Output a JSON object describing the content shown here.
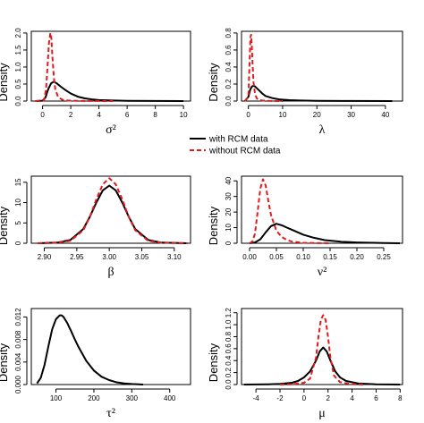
{
  "legend": {
    "with_label": "with RCM data",
    "without_label": "without RCM data"
  },
  "colors": {
    "with": "#000000",
    "without": "#e31a1c"
  },
  "chart_data": [
    {
      "type": "line",
      "ylabel": "Density",
      "xlabel": "σ²",
      "xlim": [
        -0.8,
        10.5
      ],
      "ylim": [
        0,
        2.05
      ],
      "xticks": [
        "0",
        "2",
        "4",
        "6",
        "8",
        "10"
      ],
      "xtick_values": [
        0,
        2,
        4,
        6,
        8,
        10
      ],
      "yticks": [
        "0.0",
        "0.5",
        "1.0",
        "1.5",
        "2.0"
      ],
      "ytick_values": [
        0,
        0.5,
        1.0,
        1.5,
        2.0
      ],
      "series": [
        {
          "name": "with RCM data",
          "style": "solid",
          "x": [
            -0.5,
            0.0,
            0.2,
            0.4,
            0.6,
            0.8,
            1.0,
            1.3,
            1.6,
            2.0,
            2.5,
            3.0,
            3.5,
            4.0,
            5.0,
            6.0,
            8.0,
            10.0
          ],
          "y": [
            0,
            0.01,
            0.1,
            0.35,
            0.52,
            0.57,
            0.52,
            0.42,
            0.33,
            0.22,
            0.13,
            0.08,
            0.05,
            0.03,
            0.015,
            0.008,
            0.003,
            0
          ]
        },
        {
          "name": "without RCM data",
          "style": "dashed",
          "x": [
            -0.5,
            0.1,
            0.25,
            0.35,
            0.45,
            0.55,
            0.62,
            0.7,
            0.8,
            0.9,
            1.1,
            1.4,
            1.8,
            2.5,
            3.5,
            5.0
          ],
          "y": [
            0,
            0.02,
            0.35,
            1.0,
            1.7,
            2.0,
            1.85,
            1.3,
            0.7,
            0.35,
            0.12,
            0.04,
            0.015,
            0.005,
            0.002,
            0
          ]
        }
      ]
    },
    {
      "type": "line",
      "ylabel": "Density",
      "xlabel": "λ",
      "xlim": [
        -2,
        45
      ],
      "ylim": [
        0,
        0.82
      ],
      "xticks": [
        "0",
        "10",
        "20",
        "30",
        "40"
      ],
      "xtick_values": [
        0,
        10,
        20,
        30,
        40
      ],
      "yticks": [
        "0.0",
        "0.2",
        "0.4",
        "0.6",
        "0.8"
      ],
      "ytick_values": [
        0,
        0.2,
        0.4,
        0.6,
        0.8
      ],
      "series": [
        {
          "name": "with RCM data",
          "style": "solid",
          "x": [
            -1,
            0,
            0.5,
            1,
            1.5,
            2,
            3,
            4,
            5,
            7,
            9,
            12,
            15,
            20,
            30,
            42
          ],
          "y": [
            0,
            0.05,
            0.13,
            0.17,
            0.18,
            0.17,
            0.13,
            0.09,
            0.06,
            0.035,
            0.02,
            0.01,
            0.006,
            0.003,
            0.001,
            0
          ]
        },
        {
          "name": "without RCM data",
          "style": "dashed",
          "x": [
            -1,
            0,
            0.3,
            0.6,
            0.8,
            1.0,
            1.2,
            1.5,
            2,
            2.5,
            3,
            4,
            6,
            10
          ],
          "y": [
            0,
            0.05,
            0.4,
            0.75,
            0.78,
            0.65,
            0.45,
            0.22,
            0.07,
            0.03,
            0.015,
            0.006,
            0.002,
            0
          ]
        }
      ]
    },
    {
      "type": "line",
      "ylabel": "Density",
      "xlabel": "β",
      "xlim": [
        2.88,
        3.125
      ],
      "ylim": [
        0,
        16.5
      ],
      "xticks": [
        "2.90",
        "2.95",
        "3.00",
        "3.05",
        "3.10"
      ],
      "xtick_values": [
        2.9,
        2.95,
        3.0,
        3.05,
        3.1
      ],
      "yticks": [
        "0",
        "5",
        "10",
        "15"
      ],
      "ytick_values": [
        0,
        5,
        10,
        15
      ],
      "series": [
        {
          "name": "with RCM data",
          "style": "solid",
          "x": [
            2.89,
            2.92,
            2.94,
            2.96,
            2.97,
            2.98,
            2.99,
            3.0,
            3.01,
            3.02,
            3.03,
            3.04,
            3.06,
            3.08,
            3.12
          ],
          "y": [
            0,
            0.15,
            0.8,
            3.5,
            6.5,
            10.0,
            13.0,
            14.2,
            13.0,
            10.0,
            6.5,
            3.5,
            0.8,
            0.15,
            0
          ]
        },
        {
          "name": "without RCM data",
          "style": "dashed",
          "x": [
            2.89,
            2.92,
            2.94,
            2.96,
            2.97,
            2.98,
            2.99,
            3.0,
            3.01,
            3.02,
            3.03,
            3.04,
            3.06,
            3.08,
            3.12
          ],
          "y": [
            0,
            0.1,
            0.6,
            3.2,
            6.5,
            10.8,
            14.5,
            16.0,
            14.5,
            10.8,
            6.5,
            3.2,
            0.6,
            0.1,
            0
          ]
        }
      ]
    },
    {
      "type": "line",
      "ylabel": "Density",
      "xlabel": "ν²",
      "xlim": [
        -0.015,
        0.285
      ],
      "ylim": [
        0,
        43
      ],
      "xticks": [
        "0.00",
        "0.05",
        "0.10",
        "0.15",
        "0.20",
        "0.25"
      ],
      "xtick_values": [
        0,
        0.05,
        0.1,
        0.15,
        0.2,
        0.25
      ],
      "yticks": [
        "0",
        "10",
        "20",
        "30",
        "40"
      ],
      "ytick_values": [
        0,
        10,
        20,
        30,
        40
      ],
      "series": [
        {
          "name": "with RCM data",
          "style": "solid",
          "x": [
            0,
            0.01,
            0.02,
            0.03,
            0.04,
            0.05,
            0.06,
            0.07,
            0.08,
            0.09,
            0.1,
            0.12,
            0.14,
            0.17,
            0.2,
            0.25,
            0.28
          ],
          "y": [
            0,
            0.5,
            2.5,
            7,
            11,
            12.5,
            11.5,
            10,
            8.5,
            7,
            5.5,
            3.5,
            2,
            1,
            0.5,
            0.1,
            0
          ]
        },
        {
          "name": "without RCM data",
          "style": "dashed",
          "x": [
            0,
            0.005,
            0.01,
            0.015,
            0.02,
            0.025,
            0.03,
            0.035,
            0.04,
            0.05,
            0.06,
            0.07,
            0.08,
            0.1,
            0.12,
            0.15
          ],
          "y": [
            0,
            1,
            6,
            20,
            35,
            41,
            37,
            27,
            18,
            8,
            4,
            2,
            1,
            0.3,
            0.1,
            0
          ]
        }
      ]
    },
    {
      "type": "line",
      "ylabel": "Density",
      "xlabel": "τ²",
      "xlim": [
        35,
        455
      ],
      "ylim": [
        0,
        0.0135
      ],
      "xticks": [
        "100",
        "200",
        "300",
        "400"
      ],
      "xtick_values": [
        100,
        200,
        300,
        400
      ],
      "yticks": [
        "0.000",
        "0.004",
        "0.008",
        "0.012"
      ],
      "ytick_values": [
        0,
        0.004,
        0.008,
        0.012
      ],
      "series": [
        {
          "name": "with RCM data",
          "style": "solid",
          "x": [
            50,
            60,
            70,
            80,
            90,
            100,
            110,
            115,
            120,
            130,
            140,
            150,
            160,
            180,
            200,
            220,
            240,
            260,
            280,
            300,
            330
          ],
          "y": [
            0.0002,
            0.0012,
            0.0035,
            0.0068,
            0.0098,
            0.0116,
            0.0123,
            0.0123,
            0.012,
            0.0109,
            0.0095,
            0.008,
            0.0066,
            0.0042,
            0.0025,
            0.0014,
            0.0008,
            0.0004,
            0.0002,
            0.0001,
            0
          ]
        }
      ]
    },
    {
      "type": "line",
      "ylabel": "Density",
      "xlabel": "μ",
      "xlim": [
        -5.2,
        8.2
      ],
      "ylim": [
        0,
        1.27
      ],
      "xticks": [
        "-4",
        "-2",
        "0",
        "2",
        "4",
        "6",
        "8"
      ],
      "xtick_values": [
        -4,
        -2,
        0,
        2,
        4,
        6,
        8
      ],
      "yticks": [
        "0.0",
        "0.2",
        "0.4",
        "0.6",
        "0.8",
        "1.0",
        "1.2"
      ],
      "ytick_values": [
        0,
        0.2,
        0.4,
        0.6,
        0.8,
        1.0,
        1.2
      ],
      "series": [
        {
          "name": "with RCM data",
          "style": "solid",
          "x": [
            -5,
            -3,
            -2,
            -1,
            -0.5,
            0,
            0.5,
            1.0,
            1.3,
            1.6,
            1.9,
            2.2,
            2.6,
            3.0,
            3.5,
            4.5,
            6,
            8
          ],
          "y": [
            0,
            0.005,
            0.01,
            0.03,
            0.06,
            0.12,
            0.22,
            0.4,
            0.55,
            0.62,
            0.55,
            0.4,
            0.22,
            0.12,
            0.06,
            0.02,
            0.005,
            0
          ]
        },
        {
          "name": "without RCM data",
          "style": "dashed",
          "x": [
            -2,
            -1,
            0,
            0.5,
            1.0,
            1.2,
            1.4,
            1.6,
            1.8,
            2.0,
            2.2,
            2.5,
            3.0,
            4.0,
            5.0
          ],
          "y": [
            0,
            0.005,
            0.03,
            0.1,
            0.45,
            0.8,
            1.08,
            1.16,
            1.08,
            0.8,
            0.45,
            0.15,
            0.04,
            0.005,
            0
          ]
        }
      ]
    }
  ]
}
